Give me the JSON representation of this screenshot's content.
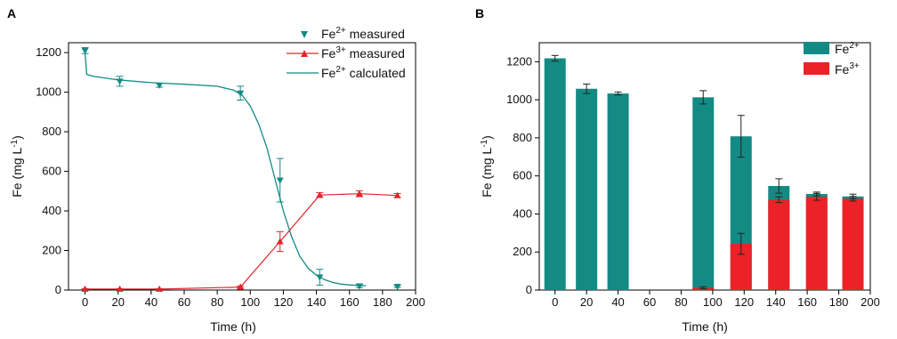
{
  "chart_data": [
    {
      "panel": "A",
      "type": "line",
      "xlabel": "Time (h)",
      "ylabel": "Fe (mg L-1)",
      "xlim": [
        -10,
        200
      ],
      "ylim": [
        0,
        1250
      ],
      "xticks": [
        0,
        20,
        40,
        60,
        80,
        100,
        120,
        140,
        160,
        180,
        200
      ],
      "yticks": [
        0,
        200,
        400,
        600,
        800,
        1000,
        1200
      ],
      "legend_position": "top-right",
      "series": [
        {
          "name": "Fe2+ measured",
          "kind": "scatter",
          "marker": "triangle-down",
          "color": "#148a84",
          "x": [
            0,
            21,
            45,
            94,
            118,
            142,
            166,
            189
          ],
          "y": [
            1210,
            1055,
            1035,
            995,
            555,
            65,
            20,
            18
          ],
          "err": [
            15,
            25,
            10,
            35,
            110,
            40,
            8,
            5
          ]
        },
        {
          "name": "Fe3+ measured",
          "kind": "line-marker",
          "marker": "triangle-up",
          "color": "#e3242b",
          "x": [
            0,
            21,
            45,
            94,
            118,
            142,
            166,
            189
          ],
          "y": [
            5,
            5,
            5,
            15,
            245,
            480,
            487,
            478
          ],
          "err": [
            2,
            2,
            2,
            5,
            50,
            12,
            15,
            10
          ]
        },
        {
          "name": "Fe2+ calculated",
          "kind": "line",
          "color": "#148a84",
          "x": [
            0,
            1,
            5,
            20,
            40,
            60,
            80,
            90,
            95,
            100,
            105,
            110,
            115,
            120,
            125,
            130,
            135,
            140,
            145,
            150,
            155,
            160,
            165,
            170
          ],
          "y": [
            1200,
            1090,
            1080,
            1062,
            1048,
            1040,
            1030,
            1010,
            985,
            930,
            840,
            720,
            560,
            400,
            270,
            170,
            110,
            75,
            52,
            38,
            30,
            26,
            23,
            22
          ]
        }
      ]
    },
    {
      "panel": "B",
      "type": "bar",
      "stacked": true,
      "xlabel": "Time (h)",
      "ylabel": "Fe (mg L-1)",
      "xlim": [
        -10,
        200
      ],
      "ylim": [
        0,
        1300
      ],
      "xticks": [
        0,
        20,
        40,
        60,
        80,
        100,
        120,
        140,
        160,
        180,
        200
      ],
      "yticks": [
        0,
        200,
        400,
        600,
        800,
        1000,
        1200
      ],
      "legend_position": "top-right",
      "x": [
        0,
        20,
        40,
        94,
        118,
        142,
        166,
        189
      ],
      "series": [
        {
          "name": "Fe2+",
          "color": "#148a84",
          "total": [
            1218,
            1058,
            1033,
            1013,
            808,
            547,
            505,
            492
          ],
          "err": [
            15,
            25,
            8,
            35,
            110,
            38,
            10,
            12
          ]
        },
        {
          "name": "Fe3+",
          "color": "#ec2228",
          "values": [
            0,
            0,
            0,
            12,
            243,
            475,
            490,
            480
          ],
          "err": [
            0,
            0,
            0,
            5,
            55,
            15,
            18,
            12
          ]
        }
      ]
    }
  ],
  "labels": {
    "panel_a": "A",
    "panel_b": "B",
    "a_legend_1": "Fe",
    "a_legend_1_sup": "2+",
    "a_legend_1_suffix": " measured",
    "a_legend_2": "Fe",
    "a_legend_2_sup": "3+",
    "a_legend_2_suffix": " measured",
    "a_legend_3": "Fe",
    "a_legend_3_sup": "2+",
    "a_legend_3_suffix": " calculated",
    "b_legend_1": "Fe",
    "b_legend_1_sup": "2+",
    "b_legend_2": "Fe",
    "b_legend_2_sup": "3+",
    "ylabel_main": "Fe (mg L",
    "ylabel_sup": "-1",
    "ylabel_close": ")",
    "xlabel": "Time (h)"
  }
}
